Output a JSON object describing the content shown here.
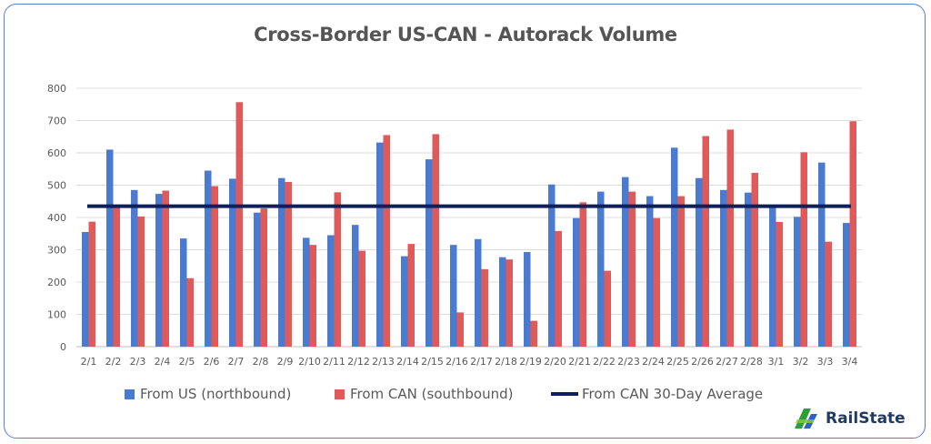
{
  "chart_data": {
    "type": "bar",
    "title": "Cross-Border US-CAN - Autorack Volume",
    "categories": [
      "2/1",
      "2/2",
      "2/3",
      "2/4",
      "2/5",
      "2/6",
      "2/7",
      "2/8",
      "2/9",
      "2/10",
      "2/11",
      "2/12",
      "2/13",
      "2/14",
      "2/15",
      "2/16",
      "2/17",
      "2/18",
      "2/19",
      "2/20",
      "2/21",
      "2/22",
      "2/23",
      "2/24",
      "2/25",
      "2/26",
      "2/27",
      "2/28",
      "3/1",
      "3/2",
      "3/3",
      "3/4"
    ],
    "series": [
      {
        "name": "From US (northbound)",
        "color": "#4a7bd0",
        "values": [
          355,
          610,
          485,
          473,
          335,
          545,
          520,
          415,
          522,
          337,
          345,
          377,
          632,
          280,
          580,
          315,
          333,
          277,
          293,
          502,
          398,
          480,
          525,
          466,
          616,
          522,
          485,
          477,
          430,
          402,
          570,
          383
        ]
      },
      {
        "name": "From CAN (southbound)",
        "color": "#e05a5a",
        "values": [
          387,
          430,
          403,
          483,
          212,
          497,
          757,
          428,
          510,
          315,
          478,
          297,
          655,
          318,
          658,
          106,
          240,
          270,
          80,
          358,
          447,
          235,
          480,
          398,
          466,
          652,
          672,
          538,
          386,
          602,
          325,
          698
        ]
      }
    ],
    "reference_line": {
      "name": "From CAN 30-Day Average",
      "value": 435,
      "color": "#0d1f5c"
    },
    "ylim": [
      0,
      800
    ],
    "yticks": [
      0,
      100,
      200,
      300,
      400,
      500,
      600,
      700,
      800
    ],
    "xlabel": "",
    "ylabel": "",
    "grid": true,
    "legend_position": "bottom"
  },
  "logo": {
    "text": "RailState",
    "icon": "railstate-logo-icon",
    "colors": [
      "#2e9d3e",
      "#2b63c4",
      "#7ac943"
    ]
  }
}
